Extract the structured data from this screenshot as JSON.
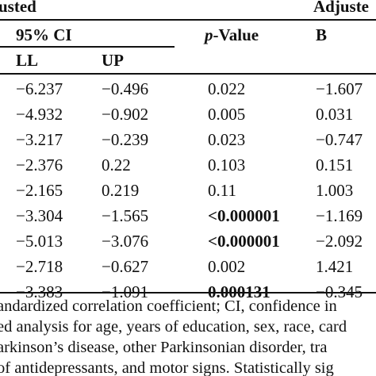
{
  "header": {
    "group_left": "usted",
    "group_right": "Adjuste",
    "ci_label": "95% CI",
    "p_label_italic": "p",
    "p_label_rest": "-Value",
    "b_label": "B",
    "ll_label": "LL",
    "up_label": "UP"
  },
  "rows": [
    {
      "ll": "−6.237",
      "up": "−0.496",
      "p": "0.022",
      "b": "−1.607",
      "p_bold": false
    },
    {
      "ll": "−4.932",
      "up": "−0.902",
      "p": "0.005",
      "b": "0.031",
      "p_bold": false
    },
    {
      "ll": "−3.217",
      "up": "−0.239",
      "p": "0.023",
      "b": "−0.747",
      "p_bold": false
    },
    {
      "ll": "−2.376",
      "up": "0.22",
      "p": "0.103",
      "b": "0.151",
      "p_bold": false
    },
    {
      "ll": "−2.165",
      "up": "0.219",
      "p": "0.11",
      "b": "1.003",
      "p_bold": false
    },
    {
      "ll": "−3.304",
      "up": "−1.565",
      "p": "<0.000001",
      "b": "−1.169",
      "p_bold": true
    },
    {
      "ll": "−5.013",
      "up": "−3.076",
      "p": "<0.000001",
      "b": "−2.092",
      "p_bold": true
    },
    {
      "ll": "−2.718",
      "up": "−0.627",
      "p": "0.002",
      "b": "1.421",
      "p_bold": false
    },
    {
      "ll": "−3.383",
      "up": "−1.091",
      "p": "0.000131",
      "b": "−0.345",
      "p_bold": true
    }
  ],
  "footnote": [
    "andardized correlation coefficient; CI, confidence in",
    "ed analysis for age, years of education, sex, race, card",
    "arkinson’s disease, other Parkinsonian disorder, tra",
    "of antidepressants, and motor signs. Statistically sig"
  ]
}
